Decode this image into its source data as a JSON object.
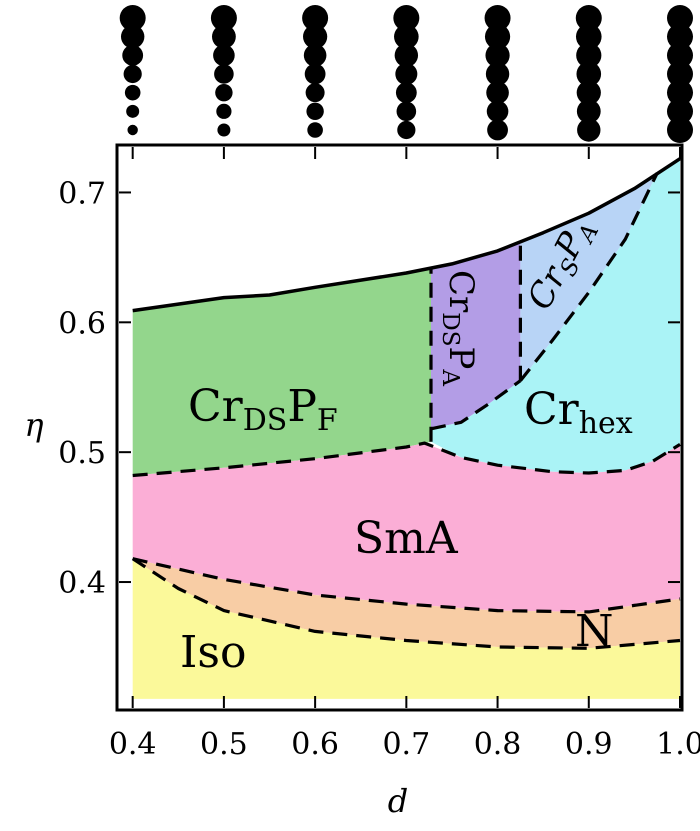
{
  "chart_data": {
    "type": "area",
    "title": "",
    "xlabel": "d",
    "ylabel": "η",
    "xlim": [
      0.385,
      1.0
    ],
    "ylim": [
      0.303,
      0.735
    ],
    "x_ticks": [
      "0.4",
      "0.5",
      "0.6",
      "0.7",
      "0.8",
      "0.9",
      "1.0"
    ],
    "x_tick_values": [
      0.4,
      0.5,
      0.6,
      0.7,
      0.8,
      0.9,
      1.0
    ],
    "y_ticks": [
      "0.4",
      "0.5",
      "0.6",
      "0.7"
    ],
    "y_tick_values": [
      0.4,
      0.5,
      0.6,
      0.7
    ],
    "top_boundary": {
      "name": "melting line (solid)",
      "x": [
        0.4,
        0.5,
        0.55,
        0.6,
        0.7,
        0.75,
        0.8,
        0.85,
        0.9,
        0.95,
        1.0
      ],
      "y": [
        0.609,
        0.619,
        0.621,
        0.627,
        0.638,
        0.645,
        0.655,
        0.669,
        0.684,
        0.703,
        0.726
      ]
    },
    "phase_boundaries": [
      {
        "name": "SmA/Cr upper boundary",
        "x": [
          0.4,
          0.5,
          0.6,
          0.7,
          0.72,
          0.76,
          0.8,
          0.86,
          0.9,
          0.94,
          0.97,
          1.0
        ],
        "y": [
          0.482,
          0.488,
          0.495,
          0.504,
          0.507,
          0.496,
          0.49,
          0.485,
          0.484,
          0.486,
          0.493,
          0.506
        ]
      },
      {
        "name": "CrDSPF/CrDSPA boundary",
        "x": [
          0.727,
          0.727
        ],
        "y": [
          0.508,
          0.642
        ]
      },
      {
        "name": "CrDSPA/CrSPA boundary",
        "x": [
          0.825,
          0.825
        ],
        "y": [
          0.555,
          0.66
        ]
      },
      {
        "name": "CrDSPA/Crhex lower boundary",
        "x": [
          0.727,
          0.76,
          0.79,
          0.825
        ],
        "y": [
          0.518,
          0.523,
          0.537,
          0.555
        ]
      },
      {
        "name": "CrSPA/Crhex boundary",
        "x": [
          0.825,
          0.86,
          0.9,
          0.94,
          0.975
        ],
        "y": [
          0.555,
          0.586,
          0.623,
          0.664,
          0.715
        ]
      },
      {
        "name": "SmA/N boundary",
        "x": [
          0.4,
          0.5,
          0.6,
          0.7,
          0.8,
          0.9,
          1.0
        ],
        "y": [
          0.418,
          0.402,
          0.39,
          0.383,
          0.378,
          0.377,
          0.387
        ]
      },
      {
        "name": "N/Iso boundary",
        "x": [
          0.4,
          0.45,
          0.5,
          0.6,
          0.7,
          0.8,
          0.9,
          1.0
        ],
        "y": [
          0.418,
          0.395,
          0.378,
          0.362,
          0.355,
          0.35,
          0.349,
          0.355
        ]
      }
    ],
    "regions": [
      {
        "name": "CrDSPF",
        "text": "Cr",
        "sub1": "DS",
        "mid": "P",
        "sub2": "F",
        "color": "#93d68c"
      },
      {
        "name": "CrDSPA",
        "text": "Cr",
        "sub1": "DS",
        "mid": "P",
        "sub2": "A",
        "color": "#b39de6"
      },
      {
        "name": "CrSPA",
        "text": "Cr",
        "sub1": "S",
        "mid": "P",
        "sub2": "A",
        "color": "#b8d4f6"
      },
      {
        "name": "Crhex",
        "text": "Cr",
        "sub1": "hex",
        "color": "#aaf3f6"
      },
      {
        "name": "SmA",
        "text": "SmA",
        "color": "#fbaed6"
      },
      {
        "name": "N",
        "text": "N",
        "color": "#f8cda5"
      },
      {
        "name": "Iso",
        "text": "Iso",
        "color": "#fbf99a"
      }
    ],
    "molecule_icons_x": [
      0.4,
      0.5,
      0.6,
      0.7,
      0.8,
      0.9,
      1.0
    ],
    "grid": false,
    "legend": "none"
  }
}
